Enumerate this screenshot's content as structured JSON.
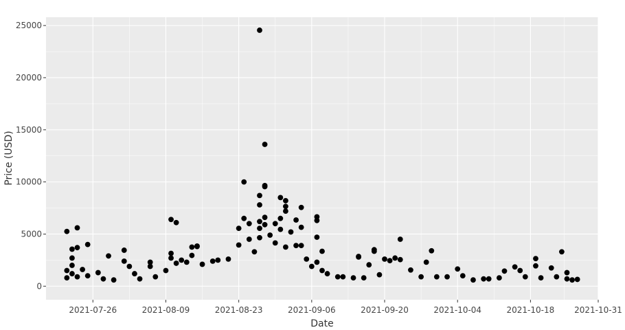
{
  "chart_data": {
    "type": "scatter",
    "title": "",
    "xlabel": "Date",
    "ylabel": "Price (USD)",
    "x_type": "date",
    "xlim": [
      "2021-07-17",
      "2021-10-31"
    ],
    "ylim": [
      -1300,
      25800
    ],
    "x_ticks": [
      "2021-07-26",
      "2021-08-09",
      "2021-08-23",
      "2021-09-06",
      "2021-09-20",
      "2021-10-04",
      "2021-10-18",
      "2021-10-31"
    ],
    "y_ticks": [
      0,
      5000,
      10000,
      15000,
      20000,
      25000
    ],
    "grid": true,
    "legend": "none",
    "colors": {
      "background": "#ebebeb",
      "grid": "#ffffff",
      "marker": "#000000"
    },
    "points": [
      [
        "2021-07-21",
        5250
      ],
      [
        "2021-07-22",
        2700
      ],
      [
        "2021-07-22",
        3550
      ],
      [
        "2021-07-23",
        3700
      ],
      [
        "2021-07-23",
        5600
      ],
      [
        "2021-07-22",
        2000
      ],
      [
        "2021-07-21",
        1500
      ],
      [
        "2021-07-21",
        800
      ],
      [
        "2021-07-22",
        1200
      ],
      [
        "2021-07-23",
        900
      ],
      [
        "2021-07-24",
        1600
      ],
      [
        "2021-07-25",
        1000
      ],
      [
        "2021-07-25",
        4000
      ],
      [
        "2021-07-27",
        1300
      ],
      [
        "2021-07-28",
        700
      ],
      [
        "2021-07-29",
        2900
      ],
      [
        "2021-07-30",
        600
      ],
      [
        "2021-08-01",
        3450
      ],
      [
        "2021-08-01",
        2400
      ],
      [
        "2021-08-02",
        1900
      ],
      [
        "2021-08-03",
        1200
      ],
      [
        "2021-08-04",
        700
      ],
      [
        "2021-08-06",
        2300
      ],
      [
        "2021-08-06",
        1900
      ],
      [
        "2021-08-07",
        900
      ],
      [
        "2021-08-09",
        1500
      ],
      [
        "2021-08-10",
        6400
      ],
      [
        "2021-08-11",
        6100
      ],
      [
        "2021-08-10",
        3150
      ],
      [
        "2021-08-10",
        2700
      ],
      [
        "2021-08-11",
        2200
      ],
      [
        "2021-08-12",
        2500
      ],
      [
        "2021-08-13",
        2300
      ],
      [
        "2021-08-14",
        2950
      ],
      [
        "2021-08-14",
        3750
      ],
      [
        "2021-08-15",
        3800
      ],
      [
        "2021-08-15",
        3850
      ],
      [
        "2021-08-16",
        2100
      ],
      [
        "2021-08-18",
        2400
      ],
      [
        "2021-08-19",
        2500
      ],
      [
        "2021-08-21",
        2600
      ],
      [
        "2021-08-23",
        5550
      ],
      [
        "2021-08-23",
        3950
      ],
      [
        "2021-08-24",
        10000
      ],
      [
        "2021-08-24",
        6500
      ],
      [
        "2021-08-25",
        6000
      ],
      [
        "2021-08-25",
        4500
      ],
      [
        "2021-08-26",
        3300
      ],
      [
        "2021-08-27",
        24550
      ],
      [
        "2021-08-27",
        8700
      ],
      [
        "2021-08-27",
        7800
      ],
      [
        "2021-08-27",
        6200
      ],
      [
        "2021-08-27",
        5550
      ],
      [
        "2021-08-27",
        4650
      ],
      [
        "2021-08-28",
        13600
      ],
      [
        "2021-08-28",
        9650
      ],
      [
        "2021-08-28",
        9550
      ],
      [
        "2021-08-28",
        6600
      ],
      [
        "2021-08-28",
        5900
      ],
      [
        "2021-08-29",
        4900
      ],
      [
        "2021-08-30",
        6000
      ],
      [
        "2021-08-30",
        4150
      ],
      [
        "2021-08-31",
        8500
      ],
      [
        "2021-08-31",
        6500
      ],
      [
        "2021-08-31",
        5450
      ],
      [
        "2021-09-01",
        8200
      ],
      [
        "2021-09-01",
        7650
      ],
      [
        "2021-09-01",
        7200
      ],
      [
        "2021-09-01",
        3750
      ],
      [
        "2021-09-02",
        5200
      ],
      [
        "2021-09-03",
        6350
      ],
      [
        "2021-09-03",
        3900
      ],
      [
        "2021-09-04",
        7550
      ],
      [
        "2021-09-04",
        5650
      ],
      [
        "2021-09-04",
        3900
      ],
      [
        "2021-09-05",
        2600
      ],
      [
        "2021-09-06",
        1900
      ],
      [
        "2021-09-07",
        6650
      ],
      [
        "2021-09-07",
        6300
      ],
      [
        "2021-09-07",
        4700
      ],
      [
        "2021-09-07",
        2300
      ],
      [
        "2021-09-08",
        3350
      ],
      [
        "2021-09-08",
        1500
      ],
      [
        "2021-09-09",
        1200
      ],
      [
        "2021-09-11",
        900
      ],
      [
        "2021-09-12",
        900
      ],
      [
        "2021-09-14",
        800
      ],
      [
        "2021-09-15",
        2850
      ],
      [
        "2021-09-15",
        2800
      ],
      [
        "2021-09-16",
        800
      ],
      [
        "2021-09-17",
        2050
      ],
      [
        "2021-09-18",
        3500
      ],
      [
        "2021-09-18",
        3350
      ],
      [
        "2021-09-19",
        1100
      ],
      [
        "2021-09-20",
        2600
      ],
      [
        "2021-09-21",
        2450
      ],
      [
        "2021-09-22",
        2700
      ],
      [
        "2021-09-23",
        4500
      ],
      [
        "2021-09-23",
        2550
      ],
      [
        "2021-09-25",
        1550
      ],
      [
        "2021-09-27",
        900
      ],
      [
        "2021-09-28",
        2300
      ],
      [
        "2021-09-29",
        3400
      ],
      [
        "2021-09-30",
        900
      ],
      [
        "2021-10-02",
        900
      ],
      [
        "2021-10-04",
        1650
      ],
      [
        "2021-10-05",
        1000
      ],
      [
        "2021-10-07",
        600
      ],
      [
        "2021-10-09",
        700
      ],
      [
        "2021-10-10",
        700
      ],
      [
        "2021-10-12",
        800
      ],
      [
        "2021-10-13",
        1450
      ],
      [
        "2021-10-15",
        1850
      ],
      [
        "2021-10-16",
        1500
      ],
      [
        "2021-10-17",
        900
      ],
      [
        "2021-10-19",
        2650
      ],
      [
        "2021-10-19",
        1950
      ],
      [
        "2021-10-20",
        800
      ],
      [
        "2021-10-22",
        1750
      ],
      [
        "2021-10-23",
        900
      ],
      [
        "2021-10-24",
        3300
      ],
      [
        "2021-10-25",
        1300
      ],
      [
        "2021-10-25",
        700
      ],
      [
        "2021-10-26",
        600
      ],
      [
        "2021-10-27",
        650
      ]
    ]
  }
}
